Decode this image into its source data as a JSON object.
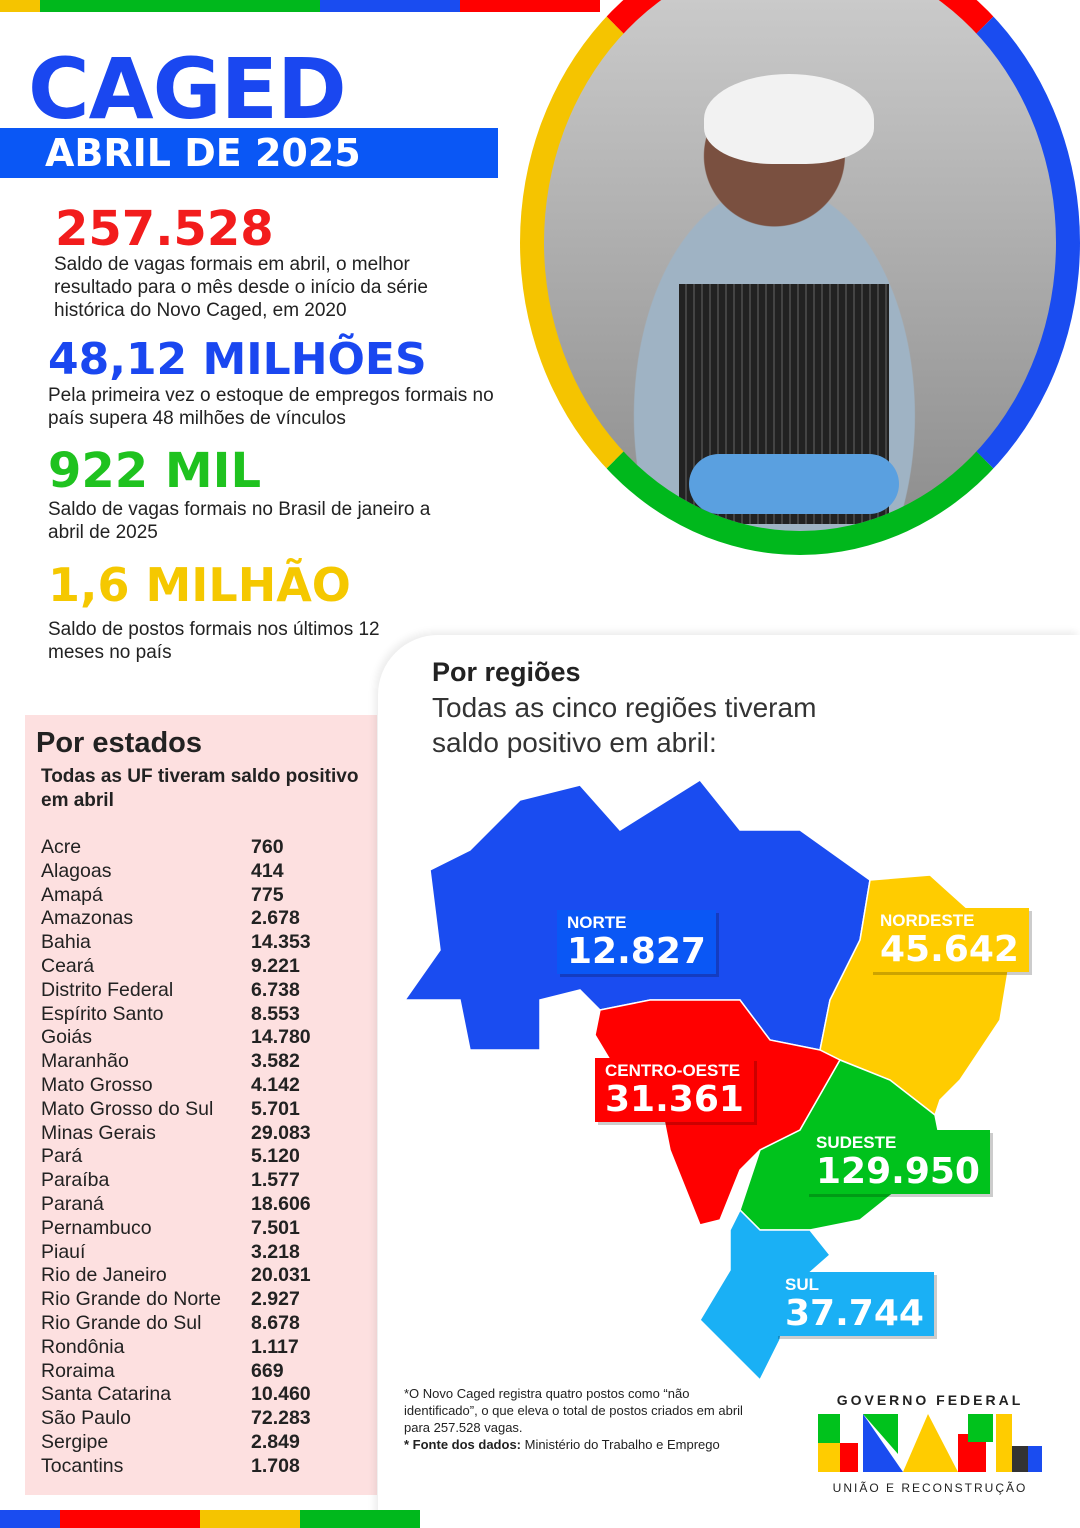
{
  "header": {
    "title": "CAGED",
    "subtitle": "ABRIL DE 2025"
  },
  "highlights": [
    {
      "value": "257.528",
      "text": "Saldo de vagas formais em abril, o melhor resultado para o mês desde o início da série histórica do Novo Caged, em 2020",
      "color": "#f21c1c"
    },
    {
      "value": "48,12 MILHÕES",
      "text": "Pela primeira vez o estoque de empregos formais no país supera 48 milhões de vínculos",
      "color": "#1a47f0"
    },
    {
      "value": "922 MIL",
      "text": "Saldo de vagas formais no Brasil de janeiro a abril de 2025",
      "color": "#1fc21f"
    },
    {
      "value": "1,6 MILHÃO",
      "text": "Saldo de postos formais nos últimos 12 meses no país",
      "color": "#f5c800"
    }
  ],
  "states": {
    "title": "Por estados",
    "subtitle": "Todas as UF tiveram saldo positivo em abril",
    "items": [
      [
        "Acre",
        "760"
      ],
      [
        "Alagoas",
        "414"
      ],
      [
        "Amapá",
        "775"
      ],
      [
        "Amazonas",
        "2.678"
      ],
      [
        "Bahia",
        "14.353"
      ],
      [
        "Ceará",
        "9.221"
      ],
      [
        "Distrito Federal",
        "6.738"
      ],
      [
        "Espírito Santo",
        "8.553"
      ],
      [
        "Goiás",
        "14.780"
      ],
      [
        "Maranhão",
        "3.582"
      ],
      [
        "Mato Grosso",
        "4.142"
      ],
      [
        "Mato Grosso do Sul",
        "5.701"
      ],
      [
        "Minas Gerais",
        "29.083"
      ],
      [
        "Pará",
        "5.120"
      ],
      [
        "Paraíba",
        "1.577"
      ],
      [
        "Paraná",
        "18.606"
      ],
      [
        "Pernambuco",
        "7.501"
      ],
      [
        "Piauí",
        "3.218"
      ],
      [
        "Rio de Janeiro",
        "20.031"
      ],
      [
        "Rio Grande do Norte",
        "2.927"
      ],
      [
        "Rio Grande do Sul",
        "8.678"
      ],
      [
        "Rondônia",
        "1.117"
      ],
      [
        "Roraima",
        "669"
      ],
      [
        "Santa Catarina",
        "10.460"
      ],
      [
        "São Paulo",
        "72.283"
      ],
      [
        "Sergipe",
        "2.849"
      ],
      [
        "Tocantins",
        "1.708"
      ]
    ]
  },
  "regions": {
    "title": "Por regiões",
    "subtitle": "Todas as cinco regiões tiveram saldo positivo em abril:",
    "items": {
      "norte": {
        "name": "NORTE",
        "value": "12.827",
        "color": "#1a4cf0"
      },
      "nordeste": {
        "name": "NORDESTE",
        "value": "45.642",
        "color": "#ffcc00"
      },
      "centro_oeste": {
        "name": "CENTRO-OESTE",
        "value": "31.361",
        "color": "#ff0000"
      },
      "sudeste": {
        "name": "SUDESTE",
        "value": "129.950",
        "color": "#00c21c"
      },
      "sul": {
        "name": "SUL",
        "value": "37.744",
        "color": "#1ab0f5"
      }
    }
  },
  "footnote": {
    "line1": "*O Novo Caged registra quatro postos como “não identificado”, o que eleva o total de postos criados em abril para 257.528  vagas.",
    "source_label": "* Fonte dos dados:",
    "source": " Ministério do Trabalho e Emprego"
  },
  "logo": {
    "top": "GOVERNO FEDERAL",
    "word": "BRASIL",
    "bottom": "UNIÃO E RECONSTRUÇÃO"
  }
}
